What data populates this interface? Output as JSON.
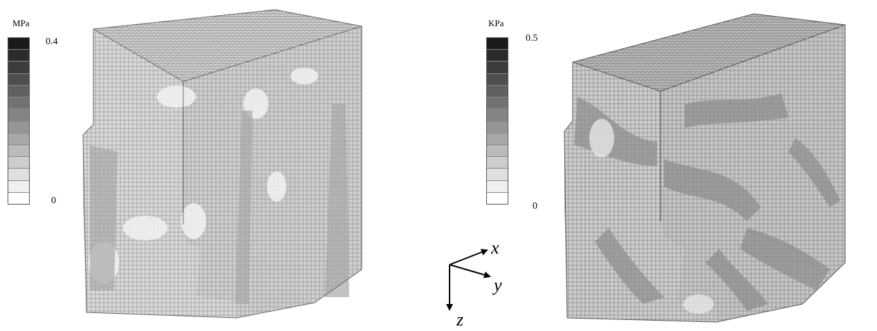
{
  "left_legend": {
    "unit": "MPa",
    "max_label": "0.4",
    "min_label": "0"
  },
  "right_legend": {
    "unit": "KPa",
    "max_label": "0.5",
    "min_label": "0"
  },
  "axes": {
    "x": "x",
    "y": "y",
    "z": "z"
  },
  "colorscale_bands": [
    "#1a1a1a",
    "#2b2b2b",
    "#3c3c3c",
    "#4e4e4e",
    "#606060",
    "#727272",
    "#848484",
    "#969696",
    "#a8a8a8",
    "#bbbbbb",
    "#cdcdcd",
    "#dfdfdf",
    "#f0f0f0",
    "#ffffff"
  ]
}
